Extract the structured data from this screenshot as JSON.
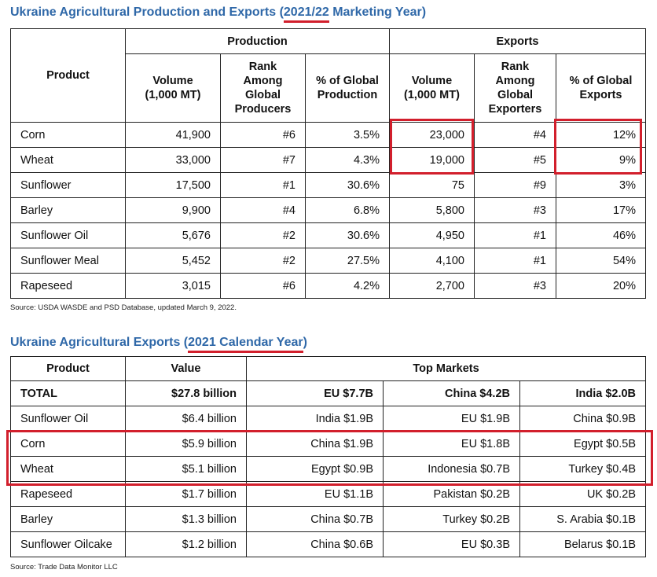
{
  "title1": {
    "text": "Ukraine Agricultural Production and Exports (",
    "year": "2021/22",
    "after": " Marketing Year)"
  },
  "table1": {
    "group_headers": [
      "Production",
      "Exports"
    ],
    "headers": [
      "Product",
      "Volume (1,000 MT)",
      "Rank Among Global Producers",
      "% of Global Production",
      "Volume (1,000 MT)",
      "Rank Among Global Exporters",
      "% of Global Exports"
    ],
    "rows": [
      [
        "Corn",
        "41,900",
        "#6",
        "3.5%",
        "23,000",
        "#4",
        "12%"
      ],
      [
        "Wheat",
        "33,000",
        "#7",
        "4.3%",
        "19,000",
        "#5",
        "9%"
      ],
      [
        "Sunflower",
        "17,500",
        "#1",
        "30.6%",
        "75",
        "#9",
        "3%"
      ],
      [
        "Barley",
        "9,900",
        "#4",
        "6.8%",
        "5,800",
        "#3",
        "17%"
      ],
      [
        "Sunflower Oil",
        "5,676",
        "#2",
        "30.6%",
        "4,950",
        "#1",
        "46%"
      ],
      [
        "Sunflower Meal",
        "5,452",
        "#2",
        "27.5%",
        "4,100",
        "#1",
        "54%"
      ],
      [
        "Rapeseed",
        "3,015",
        "#6",
        "4.2%",
        "2,700",
        "#3",
        "20%"
      ]
    ]
  },
  "source1": "Source: USDA WASDE and PSD Database, updated March 9, 2022.",
  "title2": {
    "text": "Ukraine Agricultural Exports (",
    "year": "2021 Calendar Year",
    "after": ")"
  },
  "table2": {
    "headers": [
      "Product",
      "Value",
      "Top Markets"
    ],
    "rows": [
      [
        "TOTAL",
        "$27.8 billion",
        "EU $7.7B",
        "China $4.2B",
        "India $2.0B"
      ],
      [
        "Sunflower Oil",
        "$6.4 billion",
        "India $1.9B",
        "EU $1.9B",
        "China $0.9B"
      ],
      [
        "Corn",
        "$5.9 billion",
        "China $1.9B",
        "EU $1.8B",
        "Egypt $0.5B"
      ],
      [
        "Wheat",
        "$5.1 billion",
        "Egypt $0.9B",
        "Indonesia $0.7B",
        "Turkey $0.4B"
      ],
      [
        "Rapeseed",
        "$1.7 billion",
        "EU $1.1B",
        "Pakistan $0.2B",
        "UK $0.2B"
      ],
      [
        "Barley",
        "$1.3 billion",
        "China $0.7B",
        "Turkey $0.2B",
        "S. Arabia $0.1B"
      ],
      [
        "Sunflower Oilcake",
        "$1.2 billion",
        "China $0.6B",
        "EU $0.3B",
        "Belarus $0.1B"
      ]
    ]
  },
  "source2": "Source: Trade Data Monitor LLC",
  "colors": {
    "title": "#2f68a8",
    "highlight": "#d21f2c"
  }
}
